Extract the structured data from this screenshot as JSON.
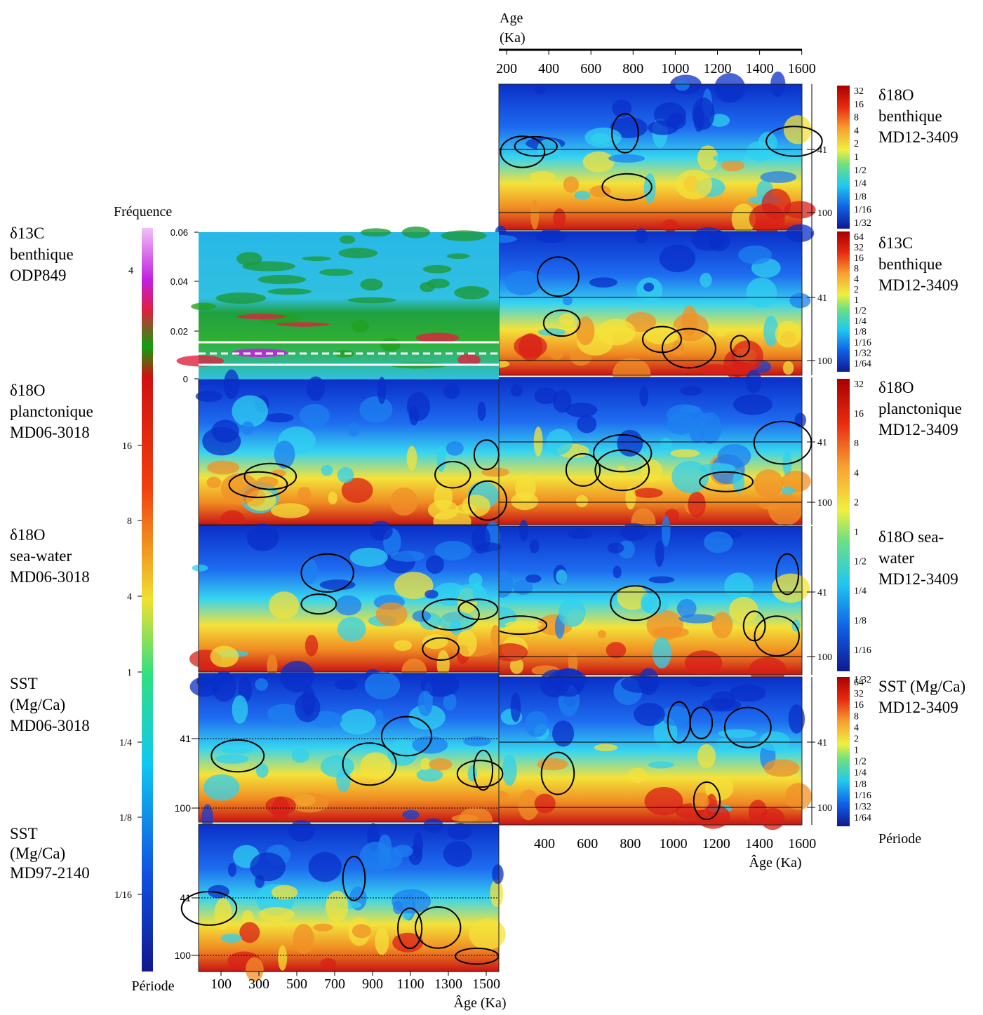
{
  "top_axis": {
    "title": [
      "Age",
      "(Ka)"
    ],
    "ticks": [
      "200",
      "400",
      "600",
      "800",
      "1000",
      "1200",
      "1400",
      "1600"
    ]
  },
  "right_panels": [
    {
      "label": [
        "δ18O",
        "benthique",
        "MD12-3409"
      ],
      "period_ticks": [
        "41",
        "100"
      ]
    },
    {
      "label": [
        "δ13C",
        " benthique",
        "MD12-3409"
      ],
      "period_ticks": [
        "41",
        "100"
      ]
    },
    {
      "label": [
        "δ18O",
        "planctonique",
        "MD12-3409"
      ],
      "period_ticks": [
        "41",
        "100"
      ]
    },
    {
      "label": [
        "δ18O sea-",
        "water",
        "MD12-3409"
      ],
      "period_ticks": [
        "41",
        "100"
      ]
    },
    {
      "label": [
        "SST (Mg/Ca)",
        "MD12-3409"
      ],
      "period_ticks": [
        "41",
        "100"
      ]
    }
  ],
  "right_colorbars": [
    [
      "32",
      "16",
      "8",
      "4",
      "2",
      "1",
      "1/2",
      "1/4",
      "1/8",
      "1/16",
      "1/32"
    ],
    [
      "64",
      "32",
      "16",
      "8",
      "4",
      "2",
      "1",
      "1/2",
      "1/4",
      "1/8",
      "1/16",
      "1/32",
      "1/64"
    ],
    [
      "32",
      "16",
      "8",
      "4",
      "2",
      "1",
      "1/2",
      "1/4",
      "1/8",
      "1/16",
      "1/32"
    ],
    [
      "64",
      "32",
      "16",
      "8",
      "4",
      "2",
      "1",
      "1/2",
      "1/4",
      "1/8",
      "1/16",
      "1/32",
      "1/64"
    ]
  ],
  "right_bottom_axis": {
    "ticks": [
      "400",
      "600",
      "800",
      "1000",
      "1200",
      "1400",
      "1600"
    ],
    "title": "Âge (Ka)",
    "legend": "Période"
  },
  "left": {
    "frequency_title": "Fréquence",
    "frequency_ticks": [
      "0.06",
      "0.04",
      "0.02",
      "0"
    ],
    "frequency_colorbar_label": "4",
    "panels": [
      {
        "label": [
          "δ13C",
          "benthique",
          "ODP849"
        ]
      },
      {
        "label": [
          "δ18O",
          "planctonique",
          "MD06-3018"
        ]
      },
      {
        "label": [
          "δ18O",
          "sea-water",
          "MD06-3018"
        ]
      },
      {
        "label": [
          "SST",
          " (Mg/Ca)",
          "MD06-3018"
        ],
        "period_ticks": [
          "41",
          "100"
        ]
      },
      {
        "label": [
          "SST",
          "(Mg/Ca)",
          "MD97-2140"
        ],
        "period_ticks": [
          "41",
          "100"
        ]
      }
    ],
    "colorbar_ticks": [
      "16",
      "8",
      "4",
      "1",
      "1/4",
      "1/8",
      "1/16"
    ],
    "colorbar_title": "Période",
    "bottom_axis": {
      "ticks": [
        "100",
        "300",
        "500",
        "700",
        "900",
        "1100",
        "1300",
        "1500"
      ],
      "title": "Âge (Ka)"
    }
  }
}
